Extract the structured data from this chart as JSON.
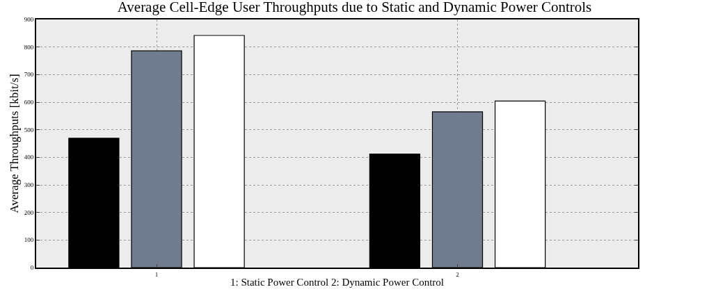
{
  "chart_data": {
    "type": "bar",
    "title": "Average Cell-Edge User Throughputs due to Static and Dynamic Power Controls",
    "xlabel": "1: Static Power Control 2: Dynamic Power Control",
    "ylabel": "Average Throughputs [kbit/s]",
    "categories": [
      "1",
      "2"
    ],
    "series": [
      {
        "color": "#000000",
        "values": [
          469,
          412
        ]
      },
      {
        "color": "#717d8f",
        "values": [
          786,
          565
        ]
      },
      {
        "color": "#ffffff",
        "values": [
          842,
          604
        ]
      }
    ],
    "ylim": [
      0,
      900
    ],
    "yticks": [
      0,
      100,
      200,
      300,
      400,
      500,
      600,
      700,
      800,
      900
    ],
    "grid": true
  }
}
